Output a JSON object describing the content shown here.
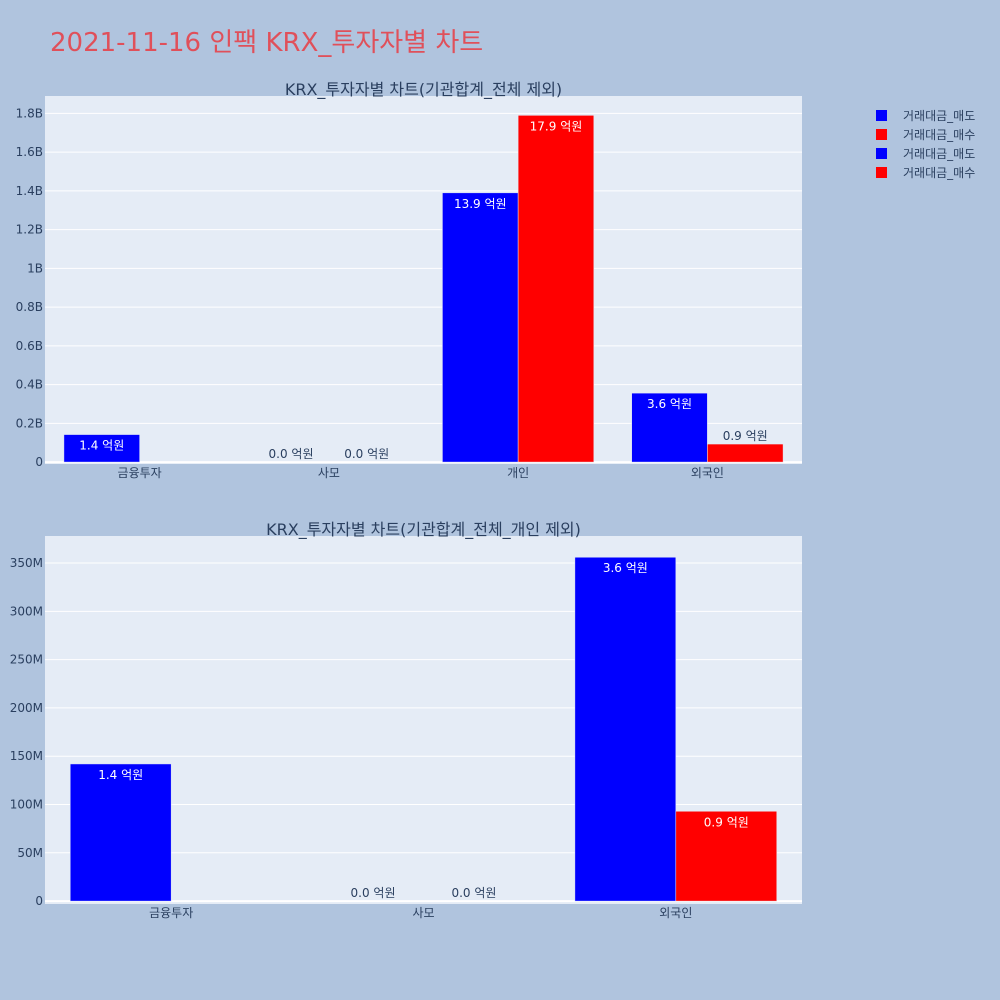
{
  "title": "2021-11-16 인팩 KRX_투자자별 차트",
  "colors": {
    "sell": "#0000ff",
    "buy": "#ff0000",
    "plot_bg": "#e5ecf6",
    "page_bg": "#b0c4de"
  },
  "legend": [
    {
      "label": "거래대금_매도",
      "color": "#0000ff"
    },
    {
      "label": "거래대금_매수",
      "color": "#ff0000"
    },
    {
      "label": "거래대금_매도",
      "color": "#0000ff"
    },
    {
      "label": "거래대금_매수",
      "color": "#ff0000"
    }
  ],
  "chart_data": [
    {
      "type": "bar",
      "title": "KRX_투자자별 차트(기관합계_전체 제외)",
      "categories": [
        "금융투자",
        "사모",
        "개인",
        "외국인"
      ],
      "series": [
        {
          "name": "거래대금_매도",
          "color": "#0000ff",
          "values": [
            142000000,
            0,
            1390000000,
            356000000
          ],
          "labels": [
            "1.4 억원",
            "0.0 억원",
            "13.9 억원",
            "3.6 억원"
          ]
        },
        {
          "name": "거래대금_매수",
          "color": "#ff0000",
          "values": [
            0,
            0,
            1790000000,
            93000000
          ],
          "labels": [
            "",
            "0.0 억원",
            "17.9 억원",
            "0.9 억원"
          ]
        }
      ],
      "yticks": [
        0,
        200000000,
        400000000,
        600000000,
        800000000,
        1000000000,
        1200000000,
        1400000000,
        1600000000,
        1800000000
      ],
      "ytick_labels": [
        "0",
        "0.2B",
        "0.4B",
        "0.6B",
        "0.8B",
        "1B",
        "1.2B",
        "1.4B",
        "1.6B",
        "1.8B"
      ],
      "ylim": [
        -10000000,
        1890000000
      ],
      "grid": true
    },
    {
      "type": "bar",
      "title": "KRX_투자자별 차트(기관합계_전체_개인 제외)",
      "categories": [
        "금융투자",
        "사모",
        "외국인"
      ],
      "series": [
        {
          "name": "거래대금_매도",
          "color": "#0000ff",
          "values": [
            142000000,
            0,
            356000000
          ],
          "labels": [
            "1.4 억원",
            "0.0 억원",
            "3.6 억원"
          ]
        },
        {
          "name": "거래대금_매수",
          "color": "#ff0000",
          "values": [
            0,
            0,
            93000000
          ],
          "labels": [
            "",
            "0.0 억원",
            "0.9 억원"
          ]
        }
      ],
      "yticks": [
        0,
        50000000,
        100000000,
        150000000,
        200000000,
        250000000,
        300000000,
        350000000
      ],
      "ytick_labels": [
        "0",
        "50M",
        "100M",
        "150M",
        "200M",
        "250M",
        "300M",
        "350M"
      ],
      "ylim": [
        -3000000,
        378000000
      ],
      "grid": true
    }
  ]
}
